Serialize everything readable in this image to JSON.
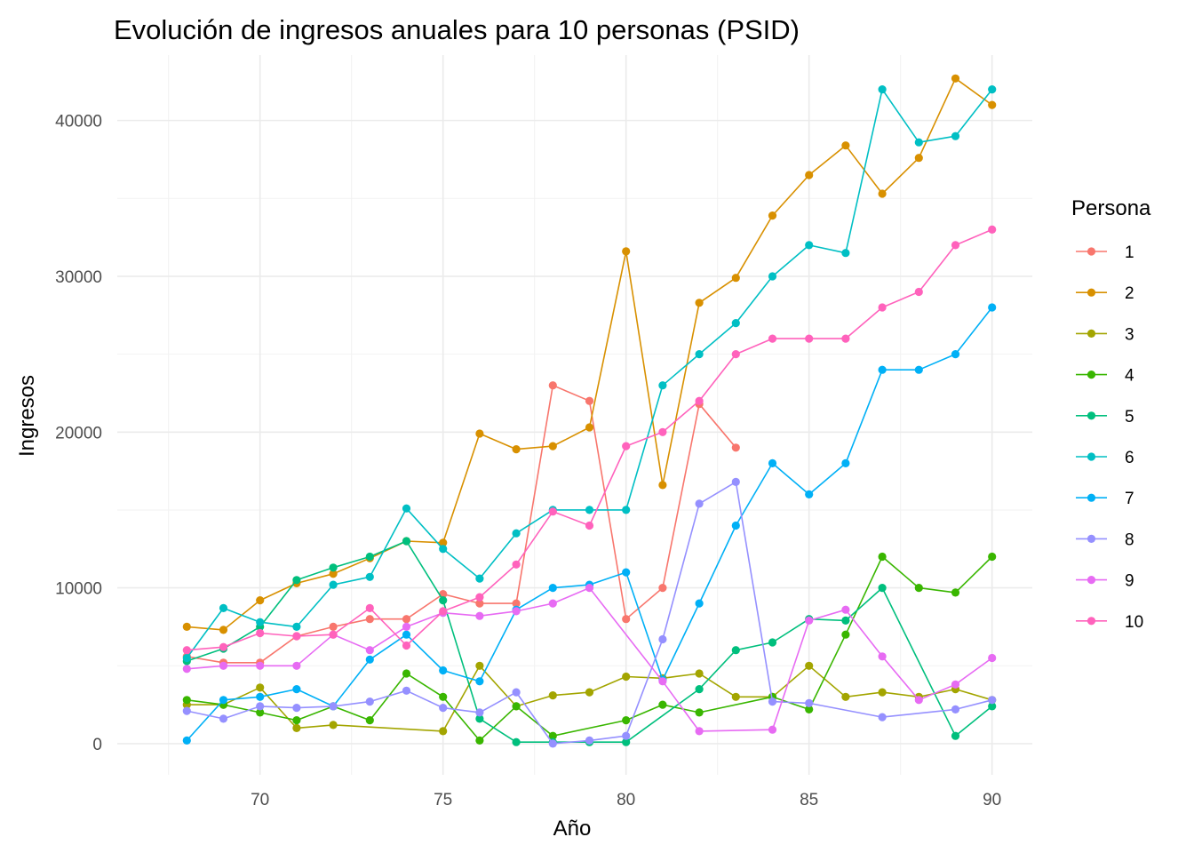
{
  "chart_data": {
    "type": "line",
    "title": "Evolución de ingresos anuales para 10 personas (PSID)",
    "xlabel": "Año",
    "ylabel": "Ingresos",
    "xlim": [
      66.1,
      91.1
    ],
    "ylim": [
      -2000,
      44200
    ],
    "x_ticks": [
      70,
      75,
      80,
      85,
      90
    ],
    "y_ticks": [
      0,
      10000,
      20000,
      30000,
      40000
    ],
    "x_tick_labels": [
      "70",
      "75",
      "80",
      "85",
      "90"
    ],
    "y_tick_labels": [
      "0",
      "10000",
      "20000",
      "30000",
      "40000"
    ],
    "grid": true,
    "legend": {
      "title": "Persona",
      "position": "right"
    },
    "series": [
      {
        "name": "1",
        "color": "#F8766D",
        "points": [
          [
            68,
            5600
          ],
          [
            69,
            5200
          ],
          [
            70,
            5200
          ],
          [
            71,
            6900
          ],
          [
            72,
            7500
          ],
          [
            73,
            8000
          ],
          [
            74,
            8000
          ],
          [
            75,
            9600
          ],
          [
            76,
            9000
          ],
          [
            77,
            9000
          ],
          [
            78,
            23000
          ],
          [
            79,
            22000
          ],
          [
            80,
            8000
          ],
          [
            81,
            10000
          ],
          [
            82,
            21800
          ],
          [
            83,
            19000
          ]
        ]
      },
      {
        "name": "2",
        "color": "#D89000",
        "points": [
          [
            68,
            7500
          ],
          [
            69,
            7300
          ],
          [
            70,
            9200
          ],
          [
            71,
            10300
          ],
          [
            72,
            10900
          ],
          [
            73,
            11900
          ],
          [
            74,
            13000
          ],
          [
            75,
            12900
          ],
          [
            76,
            19900
          ],
          [
            77,
            18900
          ],
          [
            78,
            19100
          ],
          [
            79,
            20300
          ],
          [
            80,
            31600
          ],
          [
            81,
            16600
          ],
          [
            82,
            28300
          ],
          [
            83,
            29900
          ],
          [
            84,
            33900
          ],
          [
            85,
            36500
          ],
          [
            86,
            38400
          ],
          [
            87,
            35300
          ],
          [
            88,
            37600
          ],
          [
            89,
            42700
          ],
          [
            90,
            41000
          ]
        ]
      },
      {
        "name": "3",
        "color": "#A3A500",
        "points": [
          [
            68,
            2500
          ],
          [
            69,
            2500
          ],
          [
            70,
            3600
          ],
          [
            71,
            1000
          ],
          [
            72,
            1200
          ],
          [
            75,
            800
          ],
          [
            76,
            5000
          ],
          [
            77,
            2400
          ],
          [
            78,
            3100
          ],
          [
            79,
            3300
          ],
          [
            80,
            4300
          ],
          [
            81,
            4200
          ],
          [
            82,
            4500
          ],
          [
            83,
            3000
          ],
          [
            84,
            3000
          ],
          [
            85,
            5000
          ],
          [
            86,
            3000
          ],
          [
            87,
            3300
          ],
          [
            88,
            3000
          ],
          [
            89,
            3500
          ],
          [
            90,
            2800
          ]
        ]
      },
      {
        "name": "4",
        "color": "#39B600",
        "points": [
          [
            68,
            2800
          ],
          [
            69,
            2500
          ],
          [
            70,
            2000
          ],
          [
            71,
            1500
          ],
          [
            72,
            2400
          ],
          [
            73,
            1500
          ],
          [
            74,
            4500
          ],
          [
            75,
            3000
          ],
          [
            76,
            200
          ],
          [
            77,
            2400
          ],
          [
            78,
            500
          ],
          [
            80,
            1500
          ],
          [
            81,
            2500
          ],
          [
            82,
            2000
          ],
          [
            84,
            3000
          ],
          [
            85,
            2200
          ],
          [
            86,
            7000
          ],
          [
            87,
            12000
          ],
          [
            88,
            10000
          ],
          [
            89,
            9700
          ],
          [
            90,
            12000
          ]
        ]
      },
      {
        "name": "5",
        "color": "#00BF7D",
        "points": [
          [
            68,
            5300
          ],
          [
            69,
            6100
          ],
          [
            70,
            7500
          ],
          [
            71,
            10500
          ],
          [
            72,
            11300
          ],
          [
            73,
            12000
          ],
          [
            74,
            13000
          ],
          [
            75,
            9200
          ],
          [
            76,
            1600
          ],
          [
            77,
            100
          ],
          [
            78,
            100
          ],
          [
            79,
            100
          ],
          [
            80,
            100
          ],
          [
            82,
            3500
          ],
          [
            83,
            6000
          ],
          [
            84,
            6500
          ],
          [
            85,
            8000
          ],
          [
            86,
            7900
          ],
          [
            87,
            10000
          ],
          [
            89,
            500
          ],
          [
            90,
            2400
          ]
        ]
      },
      {
        "name": "6",
        "color": "#00BFC4",
        "points": [
          [
            68,
            5500
          ],
          [
            69,
            8700
          ],
          [
            70,
            7800
          ],
          [
            71,
            7500
          ],
          [
            72,
            10200
          ],
          [
            73,
            10700
          ],
          [
            74,
            15100
          ],
          [
            75,
            12500
          ],
          [
            76,
            10600
          ],
          [
            77,
            13500
          ],
          [
            78,
            15000
          ],
          [
            79,
            15000
          ],
          [
            80,
            15000
          ],
          [
            81,
            23000
          ],
          [
            82,
            25000
          ],
          [
            83,
            27000
          ],
          [
            84,
            30000
          ],
          [
            85,
            32000
          ],
          [
            86,
            31500
          ],
          [
            87,
            42000
          ],
          [
            88,
            38600
          ],
          [
            89,
            39000
          ],
          [
            90,
            42000
          ]
        ]
      },
      {
        "name": "7",
        "color": "#00B0F6",
        "points": [
          [
            68,
            200
          ],
          [
            69,
            2800
          ],
          [
            70,
            3000
          ],
          [
            71,
            3500
          ],
          [
            72,
            2400
          ],
          [
            73,
            5400
          ],
          [
            74,
            7000
          ],
          [
            75,
            4700
          ],
          [
            76,
            4000
          ],
          [
            77,
            8600
          ],
          [
            78,
            10000
          ],
          [
            79,
            10200
          ],
          [
            80,
            11000
          ],
          [
            81,
            4100
          ],
          [
            82,
            9000
          ],
          [
            83,
            14000
          ],
          [
            84,
            18000
          ],
          [
            85,
            16000
          ],
          [
            86,
            18000
          ],
          [
            87,
            24000
          ],
          [
            88,
            24000
          ],
          [
            89,
            25000
          ],
          [
            90,
            28000
          ]
        ]
      },
      {
        "name": "8",
        "color": "#9590FF",
        "points": [
          [
            68,
            2100
          ],
          [
            69,
            1600
          ],
          [
            70,
            2400
          ],
          [
            71,
            2300
          ],
          [
            72,
            2400
          ],
          [
            73,
            2700
          ],
          [
            74,
            3400
          ],
          [
            75,
            2300
          ],
          [
            76,
            2000
          ],
          [
            77,
            3300
          ],
          [
            78,
            0
          ],
          [
            79,
            200
          ],
          [
            80,
            500
          ],
          [
            81,
            6700
          ],
          [
            82,
            15400
          ],
          [
            83,
            16800
          ],
          [
            84,
            2700
          ],
          [
            85,
            2600
          ],
          [
            87,
            1700
          ],
          [
            89,
            2200
          ],
          [
            90,
            2800
          ]
        ]
      },
      {
        "name": "9",
        "color": "#E76BF3",
        "points": [
          [
            68,
            4800
          ],
          [
            69,
            5000
          ],
          [
            70,
            5000
          ],
          [
            71,
            5000
          ],
          [
            72,
            7000
          ],
          [
            73,
            6000
          ],
          [
            74,
            7500
          ],
          [
            75,
            8400
          ],
          [
            76,
            8200
          ],
          [
            77,
            8500
          ],
          [
            78,
            9000
          ],
          [
            79,
            10000
          ],
          [
            81,
            4000
          ],
          [
            82,
            800
          ],
          [
            84,
            900
          ],
          [
            85,
            7900
          ],
          [
            86,
            8600
          ],
          [
            87,
            5600
          ],
          [
            88,
            2800
          ],
          [
            89,
            3800
          ],
          [
            90,
            5500
          ]
        ]
      },
      {
        "name": "10",
        "color": "#FF62BC",
        "points": [
          [
            68,
            6000
          ],
          [
            69,
            6200
          ],
          [
            70,
            7100
          ],
          [
            71,
            6900
          ],
          [
            72,
            7000
          ],
          [
            73,
            8700
          ],
          [
            74,
            6300
          ],
          [
            75,
            8500
          ],
          [
            76,
            9400
          ],
          [
            77,
            11500
          ],
          [
            78,
            14900
          ],
          [
            79,
            14000
          ],
          [
            80,
            19100
          ],
          [
            81,
            20000
          ],
          [
            82,
            22000
          ],
          [
            83,
            25000
          ],
          [
            84,
            26000
          ],
          [
            85,
            26000
          ],
          [
            86,
            26000
          ],
          [
            87,
            28000
          ],
          [
            88,
            29000
          ],
          [
            89,
            32000
          ],
          [
            90,
            33000
          ]
        ]
      }
    ]
  }
}
